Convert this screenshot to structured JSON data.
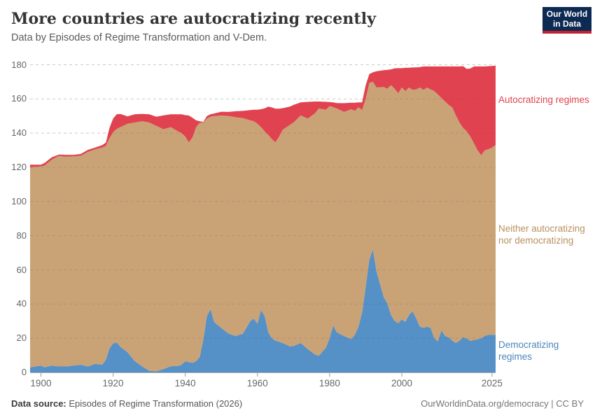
{
  "header": {
    "title": "More countries are autocratizing recently",
    "subtitle": "Data by Episodes of Regime Transformation and V-Dem.",
    "logo": {
      "line1": "Our World",
      "line2": "in Data"
    }
  },
  "chart_data": {
    "type": "area",
    "stacked": true,
    "title": "More countries are autocratizing recently",
    "xlabel": "",
    "ylabel": "",
    "xlim": [
      1897,
      2026
    ],
    "ylim": [
      0,
      180
    ],
    "grid": "dashed-horizontal",
    "legend_position": "right-annotations",
    "x_ticks": [
      1900,
      1920,
      1940,
      1960,
      1980,
      2000,
      2025
    ],
    "y_ticks": [
      0,
      20,
      40,
      60,
      80,
      100,
      120,
      140,
      160,
      180
    ],
    "x": [
      1897,
      1900,
      1901,
      1903,
      1905,
      1907,
      1909,
      1911,
      1913,
      1915,
      1917,
      1918,
      1919,
      1920,
      1921,
      1922,
      1924,
      1926,
      1928,
      1930,
      1932,
      1934,
      1936,
      1938,
      1939,
      1940,
      1941,
      1942,
      1943,
      1944,
      1945,
      1946,
      1947,
      1948,
      1950,
      1952,
      1954,
      1956,
      1958,
      1959,
      1960,
      1961,
      1962,
      1963,
      1964,
      1965,
      1966,
      1967,
      1969,
      1970,
      1972,
      1974,
      1976,
      1977,
      1979,
      1980,
      1981,
      1982,
      1984,
      1986,
      1987,
      1988,
      1989,
      1990,
      1991,
      1992,
      1993,
      1995,
      1996,
      1997,
      1998,
      1999,
      2000,
      2001,
      2002,
      2003,
      2004,
      2005,
      2006,
      2007,
      2008,
      2009,
      2010,
      2011,
      2012,
      2013,
      2014,
      2015,
      2016,
      2017,
      2018,
      2019,
      2020,
      2021,
      2022,
      2023,
      2024,
      2025,
      2026
    ],
    "series": [
      {
        "name": "Democratizing regimes",
        "color": "#5590c6",
        "label_color": "#4d87bb",
        "values": [
          3,
          4,
          3,
          4,
          3.5,
          3.5,
          4,
          4.5,
          3.5,
          5,
          4.5,
          7.5,
          14,
          17,
          17.5,
          15,
          11.8,
          6.6,
          3.6,
          1,
          0.6,
          2,
          3.6,
          3.8,
          4.5,
          6.5,
          6,
          5.6,
          6.5,
          9,
          19,
          33,
          37,
          29.5,
          26,
          22.7,
          21.3,
          22.7,
          30,
          31.4,
          28.5,
          36.5,
          33,
          23.5,
          20,
          18.6,
          18,
          17.2,
          15.2,
          15.5,
          17.2,
          13.5,
          10.4,
          9.7,
          14.5,
          20,
          27.5,
          23.4,
          21.3,
          19.5,
          22,
          26.8,
          35,
          50,
          66,
          72,
          59,
          44,
          40.5,
          33.6,
          30.2,
          28.8,
          31,
          29.5,
          33.6,
          35.7,
          31.6,
          26.8,
          26.1,
          26.8,
          26,
          20,
          18.2,
          24.7,
          21.3,
          20.5,
          18.6,
          17.2,
          18.6,
          20.6,
          20,
          18.4,
          19,
          19.3,
          20,
          21.3,
          22,
          22,
          22
        ]
      },
      {
        "name": "Neither autocratizing nor democratizing",
        "color": "#c9a376",
        "label_color": "#b9905e",
        "values": [
          117,
          116.5,
          118,
          120.4,
          123.2,
          122.7,
          122.4,
          122.2,
          125.5,
          125.5,
          127,
          125,
          123,
          123.5,
          125,
          128.5,
          133.7,
          139.6,
          143.4,
          145.2,
          143.6,
          140.3,
          139.9,
          137.2,
          135.5,
          131.5,
          128.6,
          131.9,
          137,
          137,
          127.2,
          115.5,
          112.6,
          120.5,
          124.3,
          127.3,
          128,
          126.1,
          117.5,
          115.6,
          117,
          107,
          108,
          115.5,
          116.5,
          116,
          120,
          124.8,
          129.6,
          130.7,
          133.1,
          135,
          141.3,
          144.7,
          139.2,
          135.8,
          127.7,
          131,
          131.1,
          134.5,
          131,
          128.3,
          118.5,
          110,
          103.4,
          98.1,
          107.7,
          123,
          125.5,
          134.5,
          135.8,
          134.5,
          135.7,
          135.1,
          133.1,
          129.6,
          133.9,
          139.9,
          139.2,
          139.9,
          139.5,
          144.6,
          144.4,
          135.8,
          137.2,
          136,
          136.4,
          133.1,
          127.6,
          122.4,
          121,
          119.6,
          115,
          110.7,
          107,
          108.6,
          108.6,
          109.5,
          111
        ]
      },
      {
        "name": "Autocratizing regimes",
        "color": "#e0434f",
        "label_color": "#dc4350",
        "values": [
          1.5,
          1,
          1.5,
          1.4,
          0.8,
          1.1,
          0.9,
          1.1,
          1.2,
          1,
          1.5,
          2,
          6,
          8,
          8.5,
          7.7,
          4.3,
          4.8,
          4.2,
          4.8,
          5.4,
          8.1,
          7.5,
          10,
          11,
          12.5,
          15.7,
          11.5,
          4,
          1,
          0.3,
          1.5,
          1.4,
          1.5,
          2.2,
          2.4,
          3.5,
          4.2,
          6,
          6.7,
          8.2,
          10.5,
          13.5,
          16.5,
          18.5,
          19.7,
          16.3,
          12.6,
          10.7,
          10.3,
          7.7,
          9.8,
          6.8,
          4.1,
          4.6,
          2.4,
          2.8,
          3.2,
          5.1,
          3.8,
          4.8,
          2.9,
          4.5,
          8,
          5.1,
          5.5,
          9.5,
          9.8,
          11,
          9.2,
          11.9,
          14.7,
          11.3,
          13.6,
          11.6,
          13.1,
          13,
          11.9,
          13.7,
          12.3,
          13.5,
          14.4,
          16.4,
          18.5,
          20.5,
          22.5,
          24,
          28.7,
          32.8,
          36.2,
          36.6,
          39.8,
          45,
          49,
          52,
          49.1,
          48.6,
          47.8,
          46.5
        ]
      }
    ]
  },
  "footer": {
    "source_label": "Data source:",
    "source_value": " Episodes of Regime Transformation (2026)",
    "credit_link": "OurWorldinData.org/democracy",
    "credit_license": " | CC BY"
  }
}
